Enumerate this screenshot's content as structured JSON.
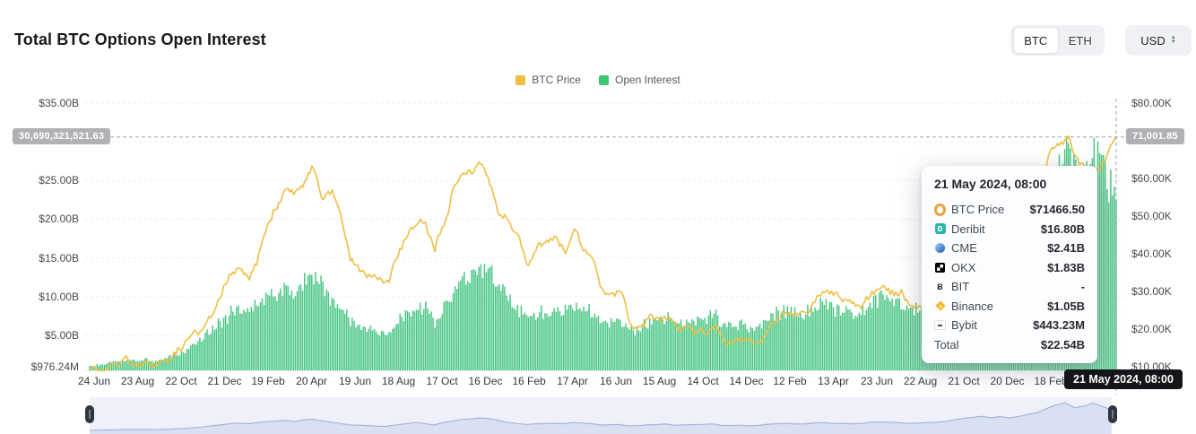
{
  "header": {
    "title": "Total BTC Options Open Interest",
    "asset_toggle": {
      "options": [
        "BTC",
        "ETH"
      ],
      "selected": "BTC"
    },
    "currency_select": {
      "value": "USD"
    }
  },
  "legend": [
    {
      "label": "BTC Price",
      "color": "#efbe43"
    },
    {
      "label": "Open Interest",
      "color": "#3ec576"
    }
  ],
  "axes": {
    "left": {
      "unit": "USD",
      "ticks": [
        {
          "label": "$35.00B",
          "value": 35
        },
        {
          "label": "$25.00B",
          "value": 25
        },
        {
          "label": "$20.00B",
          "value": 20
        },
        {
          "label": "$15.00B",
          "value": 15
        },
        {
          "label": "$10.00B",
          "value": 10
        },
        {
          "label": "$5.00B",
          "value": 5
        },
        {
          "label": "$976.24M",
          "value": 0.97624
        }
      ]
    },
    "right": {
      "unit": "USD",
      "ticks": [
        {
          "label": "$80.00K",
          "value": 80
        },
        {
          "label": "$60.00K",
          "value": 60
        },
        {
          "label": "$50.00K",
          "value": 50
        },
        {
          "label": "$40.00K",
          "value": 40
        },
        {
          "label": "$30.00K",
          "value": 30
        },
        {
          "label": "$20.00K",
          "value": 20
        },
        {
          "label": "$10.00K",
          "value": 10
        }
      ]
    },
    "x_labels": [
      "24 Jun",
      "23 Aug",
      "22 Oct",
      "21 Dec",
      "19 Feb",
      "20 Apr",
      "19 Jun",
      "18 Aug",
      "17 Oct",
      "16 Dec",
      "16 Feb",
      "17 Apr",
      "16 Jun",
      "15 Aug",
      "14 Oct",
      "14 Dec",
      "12 Feb",
      "13 Apr",
      "23 Jun",
      "22 Aug",
      "21 Oct",
      "20 Dec",
      "18 Feb"
    ]
  },
  "crosshair": {
    "left_badge": "30,690,321,521.63",
    "right_badge": "71,001.85",
    "date_badge": "21 May 2024, 08:00",
    "price_k": 71.00185
  },
  "tooltip": {
    "date": "21 May 2024, 08:00",
    "rows": [
      {
        "icon": "btc-ring",
        "name": "BTC Price",
        "value": "$71466.50"
      },
      {
        "icon": "deribit",
        "name": "Deribit",
        "value": "$16.80B"
      },
      {
        "icon": "cme",
        "name": "CME",
        "value": "$2.41B"
      },
      {
        "icon": "okx",
        "name": "OKX",
        "value": "$1.83B"
      },
      {
        "icon": "bit",
        "name": "BIT",
        "value": "-"
      },
      {
        "icon": "binance",
        "name": "Binance",
        "value": "$1.05B"
      },
      {
        "icon": "bybit",
        "name": "Bybit",
        "value": "$443.23M"
      }
    ],
    "total_label": "Total",
    "total_value": "$22.54B"
  },
  "chart_data": {
    "type": "combo",
    "x_range": "24 Jun 2020 → 21 May 2024 (~biweekly anchor samples)",
    "categories": [
      "24 Jun",
      "23 Aug",
      "22 Oct",
      "21 Dec",
      "19 Feb",
      "20 Apr",
      "19 Jun",
      "18 Aug",
      "17 Oct",
      "16 Dec",
      "16 Feb",
      "17 Apr",
      "16 Jun",
      "15 Aug",
      "14 Oct",
      "14 Dec",
      "12 Feb",
      "13 Apr",
      "23 Jun",
      "22 Aug",
      "21 Oct",
      "20 Dec",
      "18 Feb"
    ],
    "series": [
      {
        "name": "BTC Price",
        "type": "line",
        "axis": "right",
        "unit": "USD thousands",
        "color": "#efbe43",
        "ylim": [
          10,
          80
        ],
        "values": [
          9.3,
          9.1,
          9.2,
          11.0,
          11.8,
          10.2,
          10.9,
          10.7,
          11.4,
          13.0,
          15.7,
          18.7,
          19.2,
          23.2,
          29.0,
          34.0,
          36.8,
          33.5,
          38.0,
          47.5,
          52.0,
          57.0,
          55.8,
          59.1,
          63.2,
          54.0,
          57.4,
          49.1,
          38.5,
          35.5,
          34.0,
          33.8,
          32.1,
          39.9,
          44.7,
          48.8,
          47.8,
          41.5,
          47.5,
          57.4,
          62.2,
          61.4,
          64.9,
          57.2,
          50.5,
          48.6,
          43.9,
          36.7,
          41.5,
          44.0,
          43.9,
          41.0,
          47.1,
          41.1,
          39.2,
          29.1,
          29.5,
          30.2,
          20.6,
          20.2,
          23.2,
          22.8,
          23.3,
          20.3,
          20.2,
          19.6,
          19.1,
          20.8,
          16.3,
          16.6,
          17.2,
          16.8,
          16.8,
          20.9,
          23.7,
          24.6,
          23.5,
          24.4,
          28.4,
          30.0,
          28.7,
          27.6,
          26.3,
          26.8,
          30.0,
          30.5,
          30.0,
          29.2,
          26.1,
          25.9,
          26.2,
          26.4,
          26.8,
          34.5,
          36.7,
          37.8,
          43.8,
          43.7,
          44.2,
          41.5,
          42.6,
          49.7,
          57.0,
          68.3,
          69.0,
          70.6,
          64.0,
          63.0,
          61.5,
          66.3,
          71.0
        ]
      },
      {
        "name": "Open Interest",
        "type": "bar",
        "axis": "left",
        "unit": "USD billions",
        "color": "#45c581",
        "ylim": [
          0.97624,
          35
        ],
        "values": [
          1.0,
          1.2,
          1.4,
          1.7,
          1.9,
          1.7,
          1.9,
          1.6,
          2.0,
          2.4,
          2.8,
          3.6,
          4.4,
          5.6,
          6.6,
          7.8,
          8.6,
          8.0,
          9.0,
          10.0,
          10.6,
          11.4,
          10.2,
          11.8,
          12.6,
          11.0,
          9.6,
          8.2,
          6.8,
          6.4,
          6.0,
          5.4,
          5.2,
          6.8,
          7.9,
          9.1,
          8.3,
          6.6,
          9.0,
          10.6,
          12.4,
          13.0,
          14.0,
          13.2,
          11.4,
          9.2,
          8.2,
          7.2,
          7.8,
          8.1,
          8.4,
          8.0,
          9.3,
          8.6,
          8.0,
          6.6,
          6.9,
          7.1,
          5.6,
          5.9,
          6.7,
          7.0,
          7.6,
          6.4,
          6.8,
          7.0,
          7.2,
          7.8,
          6.2,
          6.0,
          6.4,
          5.6,
          6.2,
          7.4,
          8.0,
          8.3,
          7.6,
          7.9,
          8.8,
          9.0,
          8.2,
          8.4,
          7.9,
          8.3,
          9.4,
          9.8,
          9.5,
          9.0,
          8.2,
          8.6,
          9.0,
          9.4,
          10.2,
          12.0,
          13.4,
          14.6,
          15.8,
          14.2,
          15.4,
          14.0,
          15.6,
          17.8,
          19.6,
          24.0,
          27.5,
          30.0,
          24.5,
          26.5,
          29.5,
          26.0,
          22.5
        ]
      }
    ],
    "legend_position": "top-center",
    "grid": "dashed-horizontal"
  }
}
